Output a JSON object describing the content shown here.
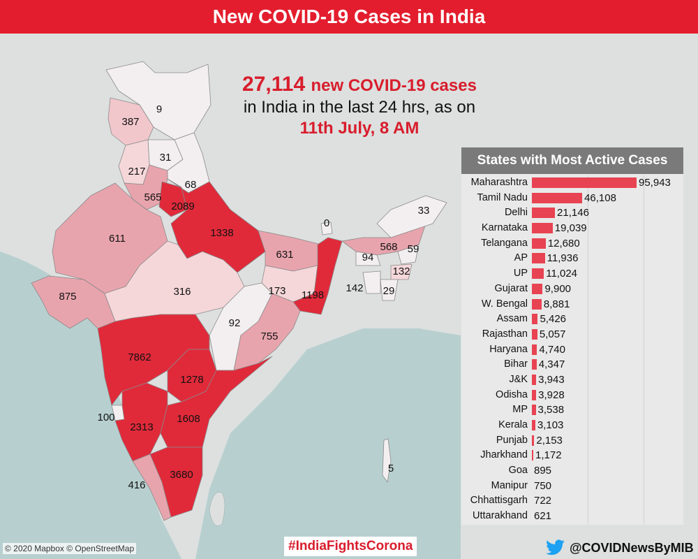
{
  "header": {
    "title": "New COVID-19 Cases in India"
  },
  "headline": {
    "count": "27,114",
    "count_suffix": "new COVID-19 cases",
    "line2": "in India in the last 24 hrs, as on",
    "line3": "11th July, 8 AM"
  },
  "colors": {
    "dark": "#e02a3a",
    "mid": "#e8a4ad",
    "light": "#f5d7da",
    "very_light": "#f3eff0",
    "water": "#b8cfcf",
    "land": "#dde0df",
    "header": "#e31d2d"
  },
  "map_labels": [
    {
      "state": "Ladakh",
      "value": "9"
    },
    {
      "state": "Jammu & Kashmir",
      "value": "387"
    },
    {
      "state": "Himachal Pradesh",
      "value": "31"
    },
    {
      "state": "Punjab",
      "value": "217"
    },
    {
      "state": "Uttarakhand",
      "value": "68"
    },
    {
      "state": "Haryana",
      "value": "565"
    },
    {
      "state": "Delhi",
      "value": "2089"
    },
    {
      "state": "Rajasthan",
      "value": "611"
    },
    {
      "state": "Uttar Pradesh",
      "value": "1338"
    },
    {
      "state": "Bihar",
      "value": "631"
    },
    {
      "state": "Sikkim",
      "value": "0"
    },
    {
      "state": "Arunachal Pradesh",
      "value": "33"
    },
    {
      "state": "Assam",
      "value": "568"
    },
    {
      "state": "Nagaland",
      "value": "59"
    },
    {
      "state": "Meghalaya",
      "value": "94"
    },
    {
      "state": "Manipur",
      "value": "132"
    },
    {
      "state": "Tripura",
      "value": "142"
    },
    {
      "state": "Mizoram",
      "value": "29"
    },
    {
      "state": "Gujarat",
      "value": "875"
    },
    {
      "state": "Madhya Pradesh",
      "value": "316"
    },
    {
      "state": "Jharkhand",
      "value": "173"
    },
    {
      "state": "West Bengal",
      "value": "1198"
    },
    {
      "state": "Chhattisgarh",
      "value": "92"
    },
    {
      "state": "Odisha",
      "value": "755"
    },
    {
      "state": "Maharashtra",
      "value": "7862"
    },
    {
      "state": "Telangana",
      "value": "1278"
    },
    {
      "state": "Goa",
      "value": "100"
    },
    {
      "state": "Karnataka",
      "value": "2313"
    },
    {
      "state": "Andhra Pradesh",
      "value": "1608"
    },
    {
      "state": "Andaman & Nicobar",
      "value": "5"
    },
    {
      "state": "Kerala",
      "value": "416"
    },
    {
      "state": "Tamil Nadu",
      "value": "3680"
    }
  ],
  "panel": {
    "title": "States with Most Active Cases",
    "rows": [
      {
        "name": "Maharashtra",
        "label": "95,943",
        "value": 95943
      },
      {
        "name": "Tamil Nadu",
        "label": "46,108",
        "value": 46108
      },
      {
        "name": "Delhi",
        "label": "21,146",
        "value": 21146
      },
      {
        "name": "Karnataka",
        "label": "19,039",
        "value": 19039
      },
      {
        "name": "Telangana",
        "label": "12,680",
        "value": 12680
      },
      {
        "name": "AP",
        "label": "11,936",
        "value": 11936
      },
      {
        "name": "UP",
        "label": "11,024",
        "value": 11024
      },
      {
        "name": "Gujarat",
        "label": "9,900",
        "value": 9900
      },
      {
        "name": "W. Bengal",
        "label": "8,881",
        "value": 8881
      },
      {
        "name": "Assam",
        "label": "5,426",
        "value": 5426
      },
      {
        "name": "Rajasthan",
        "label": "5,057",
        "value": 5057
      },
      {
        "name": "Haryana",
        "label": "4,740",
        "value": 4740
      },
      {
        "name": "Bihar",
        "label": "4,347",
        "value": 4347
      },
      {
        "name": "J&K",
        "label": "3,943",
        "value": 3943
      },
      {
        "name": "Odisha",
        "label": "3,928",
        "value": 3928
      },
      {
        "name": "MP",
        "label": "3,538",
        "value": 3538
      },
      {
        "name": "Kerala",
        "label": "3,103",
        "value": 3103
      },
      {
        "name": "Punjab",
        "label": "2,153",
        "value": 2153
      },
      {
        "name": "Jharkhand",
        "label": "1,172",
        "value": 1172
      },
      {
        "name": "Goa",
        "label": "895",
        "value": 895
      },
      {
        "name": "Manipur",
        "label": "750",
        "value": 750
      },
      {
        "name": "Chhattisgarh",
        "label": "722",
        "value": 722
      },
      {
        "name": "Uttarakhand",
        "label": "621",
        "value": 621
      }
    ],
    "max_value": 95943
  },
  "footer": {
    "attribution": "© 2020 Mapbox © OpenStreetMap",
    "hashtag": "#IndiaFightsCorona",
    "twitter_handle": "@COVIDNewsByMIB",
    "twitter_icon": "twitter-bird-icon"
  }
}
